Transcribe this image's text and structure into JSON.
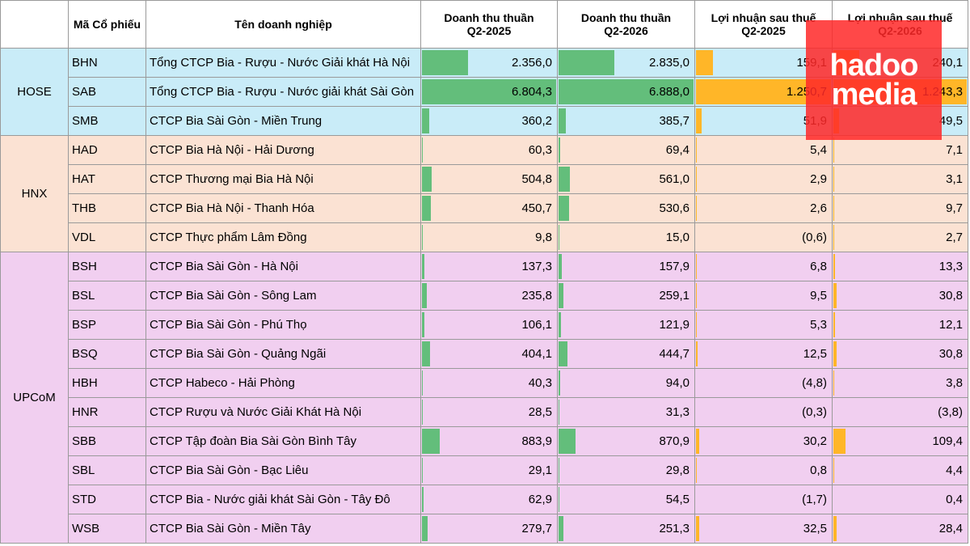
{
  "header": {
    "code": "Mã Cổ phiếu",
    "name": "Tên doanh nghiệp",
    "columns": [
      [
        "Doanh thu thuần",
        "Q2-2025"
      ],
      [
        "Doanh thu thuần",
        "Q2-2026"
      ],
      [
        "Lợi nhuận sau thuế",
        "Q2-2025"
      ],
      [
        "Lợi nhuận sau thuế",
        "Q2-2026"
      ]
    ]
  },
  "watermark": [
    "hadoo",
    "media"
  ],
  "groups": [
    {
      "name": "HOSE",
      "rows": [
        {
          "code": "BHN",
          "name": "Tổng CTCP Bia - Rượu - Nước Giải khát Hà Nội",
          "values": [
            "2.356,0",
            "2.835,0",
            "159,1",
            "240,1"
          ]
        },
        {
          "code": "SAB",
          "name": "Tổng CTCP Bia - Rượu - Nước giải khát Sài Gòn",
          "values": [
            "6.804,3",
            "6.888,0",
            "1.250,7",
            "1.243,3"
          ]
        },
        {
          "code": "SMB",
          "name": "CTCP Bia Sài Gòn - Miền Trung",
          "values": [
            "360,2",
            "385,7",
            "51,9",
            "49,5"
          ]
        }
      ]
    },
    {
      "name": "HNX",
      "rows": [
        {
          "code": "HAD",
          "name": "CTCP Bia Hà Nội - Hải Dương",
          "values": [
            "60,3",
            "69,4",
            "5,4",
            "7,1"
          ]
        },
        {
          "code": "HAT",
          "name": "CTCP Thương mại Bia Hà Nội",
          "values": [
            "504,8",
            "561,0",
            "2,9",
            "3,1"
          ]
        },
        {
          "code": "THB",
          "name": "CTCP Bia Hà Nội - Thanh Hóa",
          "values": [
            "450,7",
            "530,6",
            "2,6",
            "9,7"
          ]
        },
        {
          "code": "VDL",
          "name": "CTCP Thực phẩm Lâm Đồng",
          "values": [
            "9,8",
            "15,0",
            "(0,6)",
            "2,7"
          ]
        }
      ]
    },
    {
      "name": "UPCoM",
      "rows": [
        {
          "code": "BSH",
          "name": "CTCP Bia Sài Gòn - Hà Nội",
          "values": [
            "137,3",
            "157,9",
            "6,8",
            "13,3"
          ]
        },
        {
          "code": "BSL",
          "name": "CTCP Bia Sài Gòn - Sông Lam",
          "values": [
            "235,8",
            "259,1",
            "9,5",
            "30,8"
          ]
        },
        {
          "code": "BSP",
          "name": "CTCP Bia Sài Gòn - Phú Thọ",
          "values": [
            "106,1",
            "121,9",
            "5,3",
            "12,1"
          ]
        },
        {
          "code": "BSQ",
          "name": "CTCP Bia Sài Gòn - Quảng Ngãi",
          "values": [
            "404,1",
            "444,7",
            "12,5",
            "30,8"
          ]
        },
        {
          "code": "HBH",
          "name": "CTCP Habeco - Hải Phòng",
          "values": [
            "40,3",
            "94,0",
            "(4,8)",
            "3,8"
          ]
        },
        {
          "code": "HNR",
          "name": "CTCP Rượu và Nước Giải Khát Hà Nội",
          "values": [
            "28,5",
            "31,3",
            "(0,3)",
            "(3,8)"
          ]
        },
        {
          "code": "SBB",
          "name": "CTCP Tập đoàn Bia Sài Gòn Bình Tây",
          "values": [
            "883,9",
            "870,9",
            "30,2",
            "109,4"
          ]
        },
        {
          "code": "SBL",
          "name": "CTCP Bia Sài Gòn - Bạc Liêu",
          "values": [
            "29,1",
            "29,8",
            "0,8",
            "4,4"
          ]
        },
        {
          "code": "STD",
          "name": "CTCP Bia - Nước giải khát Sài Gòn - Tây Đô",
          "values": [
            "62,9",
            "54,5",
            "(1,7)",
            "0,4"
          ]
        },
        {
          "code": "WSB",
          "name": "CTCP Bia Sài Gòn - Miền Tây",
          "values": [
            "279,7",
            "251,3",
            "32,5",
            "28,4"
          ]
        }
      ]
    }
  ]
}
